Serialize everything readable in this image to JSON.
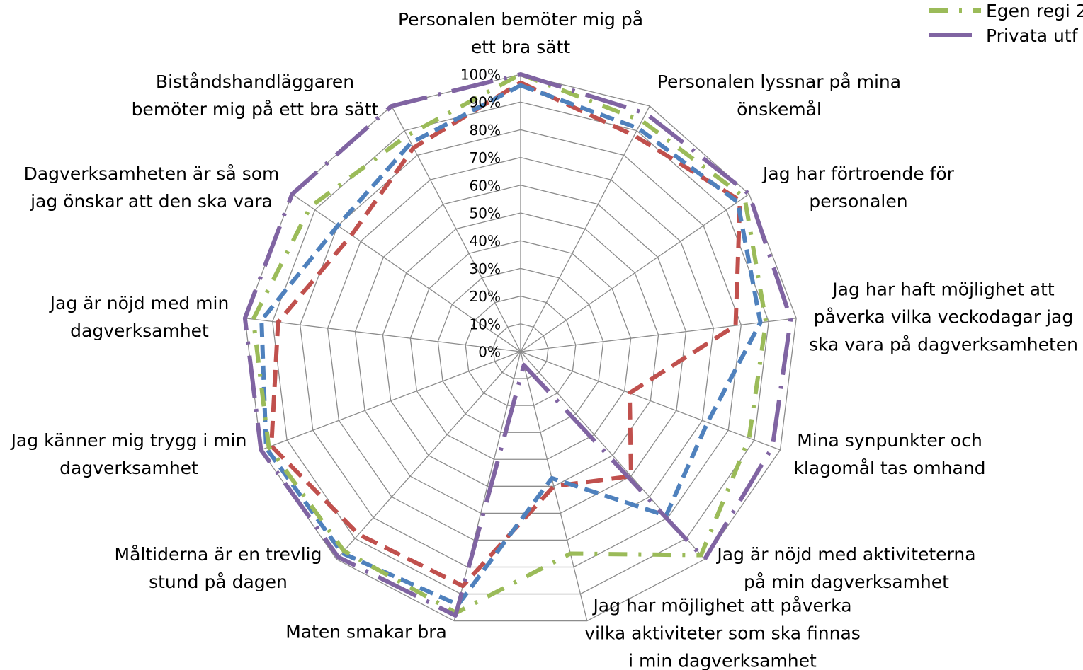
{
  "chart_data": {
    "type": "radar",
    "categories": [
      "Personalen bemöter mig på ett bra sätt",
      "Personalen lyssnar på mina önskemål",
      "Jag har förtroende för personalen",
      "Jag har haft möjlighet att påverka vilka veckodagar jag ska vara på dagverksamheten",
      "Mina synpunkter och klagomål tas omhand",
      "Jag är nöjd med aktiviteterna på min dagverksamhet",
      "Jag har möjlighet att påverka vilka aktiviteter som ska finnas i min dagverksamhet",
      "Maten smakar bra",
      "Måltiderna är en trevlig stund på dagen",
      "Jag känner mig trygg i min dagverksamhet",
      "Jag är nöjd med min dagverksamhet",
      "Dagverksamheten är så som jag önskar att den ska vara",
      "Biståndshandläggaren bemöter mig på ett bra sätt"
    ],
    "series": [
      {
        "color": "#c0504d",
        "dash": "24 12",
        "values": [
          97,
          88,
          96,
          78,
          42,
          60,
          50,
          87,
          88,
          96,
          88,
          74,
          83
        ]
      },
      {
        "color": "#4f81bd",
        "dash": "20 10",
        "values": [
          96,
          91,
          95,
          87,
          72,
          79,
          47,
          94,
          97,
          98,
          94,
          80,
          85
        ]
      },
      {
        "name": "Egen regi 2",
        "color": "#9bbb59",
        "dash": "26 16 4 16",
        "values": [
          100,
          94,
          98,
          89,
          88,
          98,
          75,
          97,
          96,
          97,
          97,
          92,
          88
        ]
      },
      {
        "name": "Privata utf",
        "color": "#8064a2",
        "dash": "60 16 4 16",
        "values": [
          100,
          97,
          100,
          98,
          97,
          100,
          5,
          98,
          99,
          100,
          100,
          100,
          100
        ]
      }
    ],
    "ylim": [
      0,
      100
    ],
    "yticks": [
      {
        "value": 0,
        "label": "0%"
      },
      {
        "value": 10,
        "label": "10%"
      },
      {
        "value": 20,
        "label": "20%"
      },
      {
        "value": 30,
        "label": "30%"
      },
      {
        "value": 40,
        "label": "40%"
      },
      {
        "value": 50,
        "label": "50%"
      },
      {
        "value": 60,
        "label": "60%"
      },
      {
        "value": 70,
        "label": "70%"
      },
      {
        "value": 80,
        "label": "80%"
      },
      {
        "value": 90,
        "label": "90%"
      },
      {
        "value": 100,
        "label": "100%"
      }
    ],
    "grid": true
  }
}
